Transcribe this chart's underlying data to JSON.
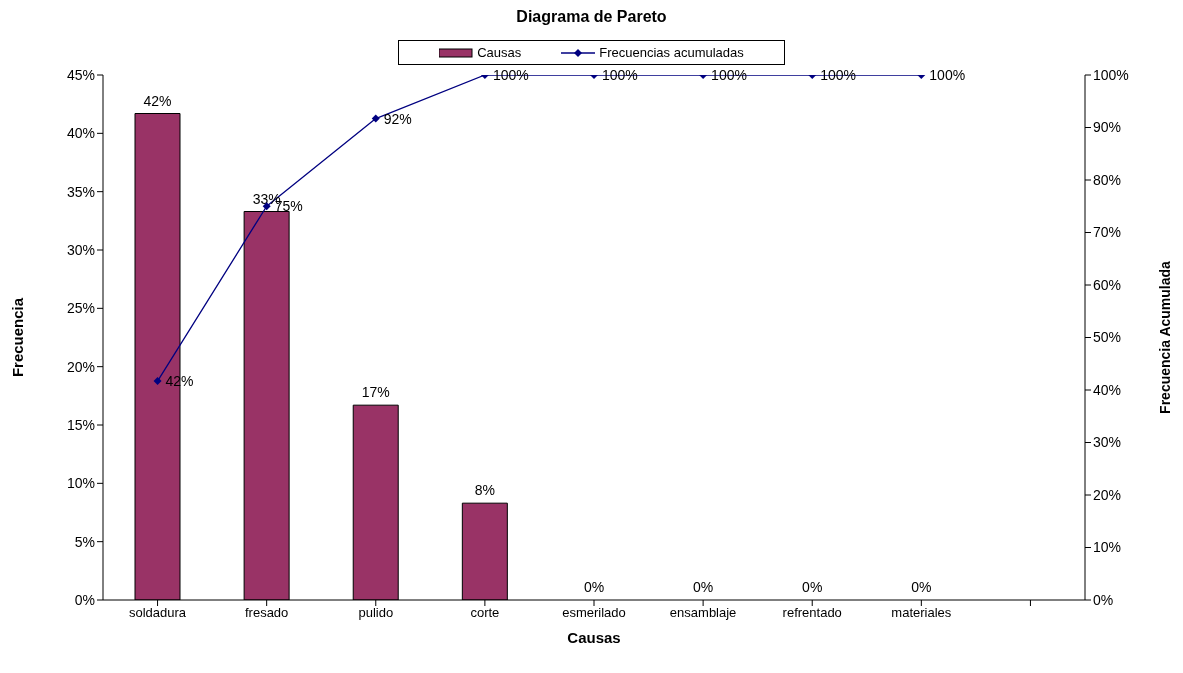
{
  "chart_data": {
    "type": "bar",
    "title": "Diagrama de Pareto",
    "xlabel": "Causas",
    "ylabel": "Frecuencia",
    "y2label": "Frecuencia Acumulada",
    "categories": [
      "soldadura",
      "fresado",
      "pulido",
      "corte",
      "esmerilado",
      "ensamblaje",
      "refrentado",
      "materiales",
      null
    ],
    "series": [
      {
        "name": "Causas",
        "color": "#993366",
        "values": [
          41.7,
          33.3,
          16.7,
          8.3,
          0,
          0,
          0,
          0,
          null
        ],
        "value_labels": [
          "42%",
          "33%",
          "17%",
          "8%",
          "0%",
          "0%",
          "0%",
          "0%",
          null
        ]
      },
      {
        "name": "Frecuencias acumuladas",
        "type": "line",
        "axis": "y2",
        "color": "#000080",
        "marker": "diamond",
        "values": [
          41.7,
          75,
          91.7,
          100,
          100,
          100,
          100,
          100,
          null
        ],
        "value_labels": [
          "42%",
          "75%",
          "92%",
          "100%",
          "100%",
          "100%",
          "100%",
          "100%",
          null
        ]
      }
    ],
    "ylim": [
      0,
      45
    ],
    "yticks": [
      {
        "value": 0,
        "label": "0%"
      },
      {
        "value": 5,
        "label": "5%"
      },
      {
        "value": 10,
        "label": "10%"
      },
      {
        "value": 15,
        "label": "15%"
      },
      {
        "value": 20,
        "label": "20%"
      },
      {
        "value": 25,
        "label": "25%"
      },
      {
        "value": 30,
        "label": "30%"
      },
      {
        "value": 35,
        "label": "35%"
      },
      {
        "value": 40,
        "label": "40%"
      },
      {
        "value": 45,
        "label": "45%"
      }
    ],
    "y2lim": [
      0,
      100
    ],
    "y2ticks": [
      {
        "value": 0,
        "label": "0%"
      },
      {
        "value": 10,
        "label": "10%"
      },
      {
        "value": 20,
        "label": "20%"
      },
      {
        "value": 30,
        "label": "30%"
      },
      {
        "value": 40,
        "label": "40%"
      },
      {
        "value": 50,
        "label": "50%"
      },
      {
        "value": 60,
        "label": "60%"
      },
      {
        "value": 70,
        "label": "70%"
      },
      {
        "value": 80,
        "label": "80%"
      },
      {
        "value": 90,
        "label": "90%"
      },
      {
        "value": 100,
        "label": "100%"
      }
    ],
    "grid": false,
    "legend": "top"
  }
}
